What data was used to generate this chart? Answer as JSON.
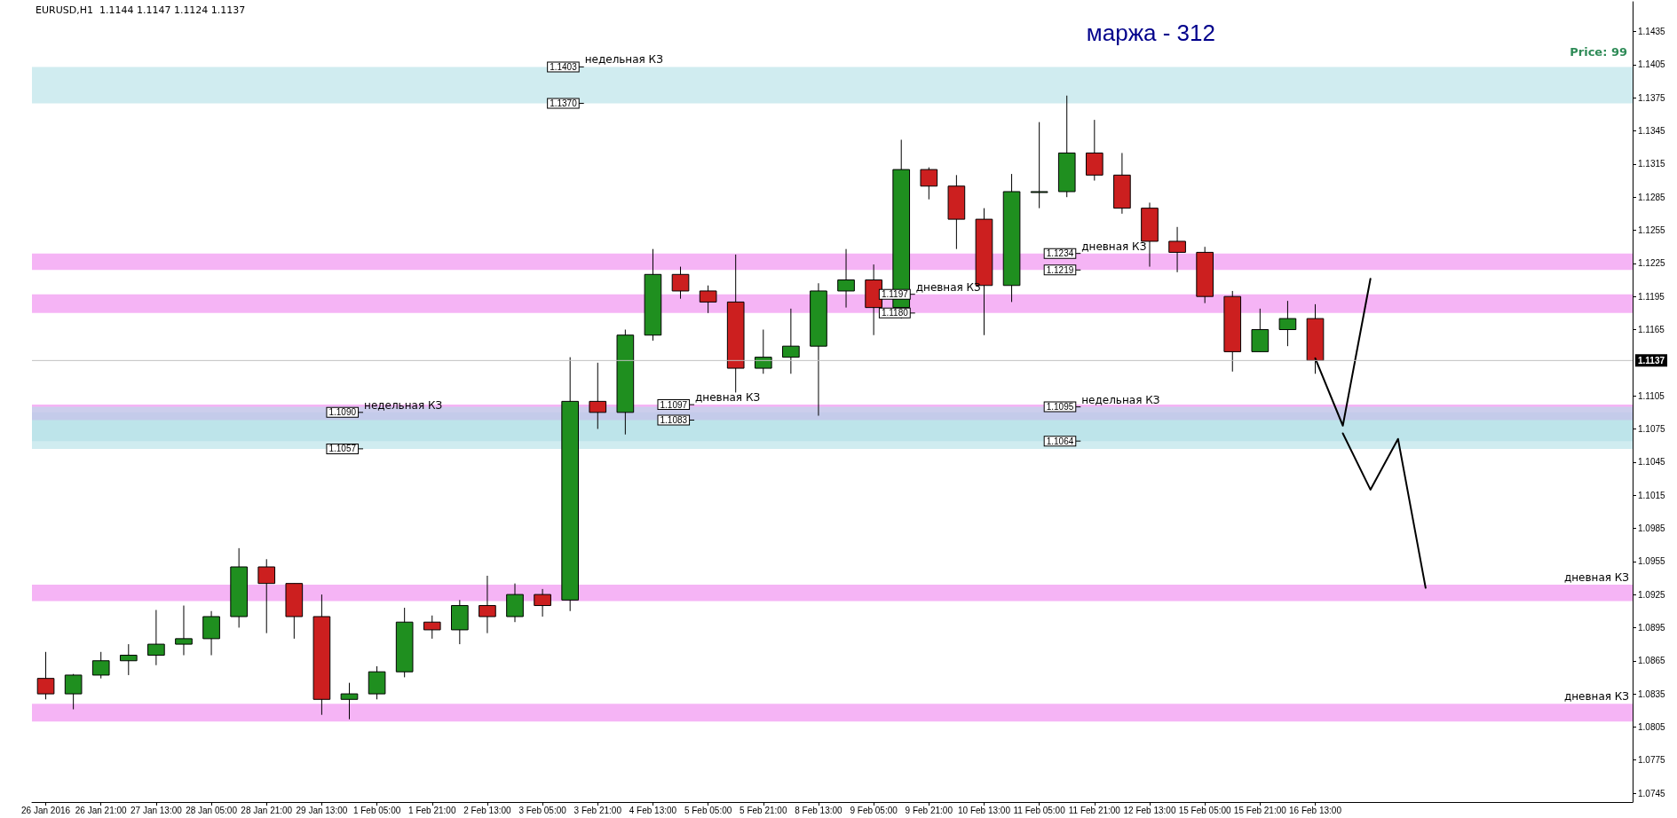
{
  "chart_data": {
    "type": "candlestick",
    "title": "EURUSD,H1  1.1144 1.1147 1.1124 1.1137",
    "categories": [
      "26 Jan 2016",
      null,
      "26 Jan 21:00",
      null,
      "27 Jan 13:00",
      null,
      "28 Jan 05:00",
      null,
      "28 Jan 21:00",
      null,
      "29 Jan 13:00",
      null,
      "1 Feb 05:00",
      null,
      "1 Feb 21:00",
      null,
      "2 Feb 13:00",
      null,
      "3 Feb 05:00",
      null,
      "3 Feb 21:00",
      null,
      "4 Feb 13:00",
      null,
      "5 Feb 05:00",
      null,
      "5 Feb 21:00",
      null,
      "8 Feb 13:00",
      null,
      "9 Feb 05:00",
      null,
      "9 Feb 21:00",
      null,
      "10 Feb 13:00",
      null,
      "11 Feb 05:00",
      null,
      "11 Feb 21:00",
      null,
      "12 Feb 13:00",
      null,
      "15 Feb 05:00",
      null,
      "15 Feb 21:00",
      null,
      "16 Feb 13:00",
      null,
      null,
      null,
      null,
      null,
      null,
      null,
      null,
      null,
      null,
      null
    ],
    "ohlc": [
      [
        1.0849,
        1.0873,
        1.083,
        1.0835
      ],
      [
        1.0835,
        1.0853,
        1.0821,
        1.0852
      ],
      [
        1.0852,
        1.0873,
        1.0849,
        1.0865
      ],
      [
        1.0865,
        1.088,
        1.0852,
        1.087
      ],
      [
        1.087,
        1.0911,
        1.0861,
        1.088
      ],
      [
        1.088,
        1.0915,
        1.087,
        1.0885
      ],
      [
        1.0885,
        1.091,
        1.087,
        1.0905
      ],
      [
        1.0905,
        1.0967,
        1.0895,
        1.095
      ],
      [
        1.095,
        1.0957,
        1.089,
        1.0935
      ],
      [
        1.0935,
        1.0935,
        1.0885,
        1.0905
      ],
      [
        1.0905,
        1.0925,
        1.0816,
        1.083
      ],
      [
        1.083,
        1.0845,
        1.0812,
        1.0835
      ],
      [
        1.0835,
        1.086,
        1.083,
        1.0855
      ],
      [
        1.0855,
        1.0913,
        1.085,
        1.09
      ],
      [
        1.09,
        1.0906,
        1.0885,
        1.0893
      ],
      [
        1.0893,
        1.092,
        1.088,
        1.0915
      ],
      [
        1.0915,
        1.0942,
        1.089,
        1.0905
      ],
      [
        1.0905,
        1.0935,
        1.09,
        1.0925
      ],
      [
        1.0925,
        1.093,
        1.0905,
        1.0915
      ],
      [
        1.092,
        1.114,
        1.091,
        1.11
      ],
      [
        1.11,
        1.1135,
        1.1075,
        1.109
      ],
      [
        1.109,
        1.1165,
        1.107,
        1.116
      ],
      [
        1.116,
        1.1238,
        1.1155,
        1.1215
      ],
      [
        1.1215,
        1.1222,
        1.1193,
        1.12
      ],
      [
        1.12,
        1.1205,
        1.118,
        1.119
      ],
      [
        1.119,
        1.1233,
        1.1108,
        1.113
      ],
      [
        1.113,
        1.1165,
        1.1125,
        1.114
      ],
      [
        1.114,
        1.1184,
        1.1125,
        1.115
      ],
      [
        1.115,
        1.1207,
        1.1087,
        1.12
      ],
      [
        1.12,
        1.1238,
        1.1185,
        1.121
      ],
      [
        1.121,
        1.1224,
        1.116,
        1.1185
      ],
      [
        1.1185,
        1.1337,
        1.1175,
        1.131
      ],
      [
        1.131,
        1.1312,
        1.1283,
        1.1295
      ],
      [
        1.1295,
        1.1305,
        1.1238,
        1.1265
      ],
      [
        1.1265,
        1.1275,
        1.116,
        1.1205
      ],
      [
        1.1205,
        1.1306,
        1.119,
        1.129
      ],
      [
        1.129,
        1.1353,
        1.1275,
        1.129
      ],
      [
        1.129,
        1.1377,
        1.1285,
        1.1325
      ],
      [
        1.1325,
        1.1355,
        1.13,
        1.1305
      ],
      [
        1.1305,
        1.1325,
        1.127,
        1.1275
      ],
      [
        1.1275,
        1.128,
        1.1222,
        1.1245
      ],
      [
        1.1245,
        1.1258,
        1.1217,
        1.1235
      ],
      [
        1.1235,
        1.124,
        1.1189,
        1.1195
      ],
      [
        1.1195,
        1.12,
        1.1127,
        1.1145
      ],
      [
        1.1145,
        1.1184,
        1.1145,
        1.1165
      ],
      [
        1.1165,
        1.1191,
        1.115,
        1.1175
      ],
      [
        1.1175,
        1.1188,
        1.1125,
        1.1137
      ],
      null,
      null,
      null,
      null,
      null,
      null,
      null,
      null,
      null,
      null,
      null
    ],
    "ylim": [
      1.0737,
      1.1462
    ],
    "yticks": [
      1.0745,
      1.0775,
      1.0805,
      1.0835,
      1.0865,
      1.0895,
      1.0925,
      1.0955,
      1.0985,
      1.1015,
      1.1045,
      1.1075,
      1.1105,
      1.1165,
      1.1195,
      1.1225,
      1.1255,
      1.1285,
      1.1315,
      1.1345,
      1.1375,
      1.1405,
      1.1435
    ],
    "grid": false,
    "marker": "none",
    "line_style": "solid",
    "bands": [
      {
        "axis": "y",
        "from": 1.0919,
        "to": 1.0934,
        "label": "дневная КЗ",
        "color": "#ee82ee"
      },
      {
        "axis": "y",
        "from": 1.081,
        "to": 1.0826,
        "label": "дневная КЗ",
        "color": "#ee82ee"
      },
      {
        "axis": "y",
        "from": 1.1057,
        "to": 1.109,
        "label": "недельная КЗ",
        "color": "#b0e0e6"
      },
      {
        "axis": "y",
        "from": 1.137,
        "to": 1.1403,
        "label": "недельная КЗ",
        "color": "#b0e0e6"
      },
      {
        "axis": "y",
        "from": 1.1083,
        "to": 1.1097,
        "label": "дневная КЗ",
        "color": "#ee82ee"
      },
      {
        "axis": "y",
        "from": 1.118,
        "to": 1.1197,
        "label": "дневная КЗ",
        "color": "#ee82ee"
      },
      {
        "axis": "y",
        "from": 1.1219,
        "to": 1.1234,
        "label": "дневная КЗ",
        "color": "#ee82ee"
      },
      {
        "axis": "y",
        "from": 1.1064,
        "to": 1.1095,
        "label": "недельная КЗ",
        "color": "#b0e0e6"
      }
    ],
    "series": [
      {
        "type": "line",
        "color": "#000000",
        "values": [
          null,
          null,
          null,
          null,
          null,
          null,
          null,
          null,
          null,
          null,
          null,
          null,
          null,
          null,
          null,
          null,
          null,
          null,
          null,
          null,
          null,
          null,
          null,
          null,
          null,
          null,
          null,
          null,
          null,
          null,
          null,
          null,
          null,
          null,
          null,
          null,
          null,
          null,
          null,
          null,
          null,
          null,
          null,
          null,
          null,
          null,
          1.1139,
          1.1078,
          1.1211,
          null,
          null,
          null,
          null,
          null,
          null,
          null,
          null,
          null
        ]
      },
      {
        "type": "line",
        "color": "#000000",
        "values": [
          null,
          null,
          null,
          null,
          null,
          null,
          null,
          null,
          null,
          null,
          null,
          null,
          null,
          null,
          null,
          null,
          null,
          null,
          null,
          null,
          null,
          null,
          null,
          null,
          null,
          null,
          null,
          null,
          null,
          null,
          null,
          null,
          null,
          null,
          null,
          null,
          null,
          null,
          null,
          null,
          null,
          null,
          null,
          null,
          null,
          null,
          null,
          1.1071,
          1.102,
          1.1066,
          1.0931,
          null,
          null,
          null,
          null,
          null,
          null,
          null
        ]
      }
    ],
    "ref_lines": [
      {
        "axis": "y",
        "value": 1.1137,
        "label": "1.1137",
        "color": "#c0c0c0"
      }
    ],
    "annotations": [
      "маржа - 312",
      "Price: 99",
      {
        "text": "1.1090",
        "x": "1 Feb 05:00",
        "y": 1.109
      },
      {
        "text": "1.1057",
        "x": "1 Feb 05:00",
        "y": 1.1057
      },
      {
        "text": "1.1403",
        "x": "3 Feb 21:00",
        "y": 1.1403
      },
      {
        "text": "1.1370",
        "x": "3 Feb 21:00",
        "y": 1.137
      },
      {
        "text": "1.1097",
        "x": "5 Feb 05:00",
        "y": 1.1097
      },
      {
        "text": "1.1083",
        "x": "5 Feb 05:00",
        "y": 1.1083
      },
      {
        "text": "1.1197",
        "x": "9 Feb 21:00",
        "y": 1.1197
      },
      {
        "text": "1.1180",
        "x": "9 Feb 21:00",
        "y": 1.118
      },
      {
        "text": "1.1234",
        "x": "11 Feb 21:00",
        "y": 1.1234
      },
      {
        "text": "1.1219",
        "x": "11 Feb 21:00",
        "y": 1.1219
      },
      {
        "text": "1.1095",
        "x": "11 Feb 21:00",
        "y": 1.1095
      },
      {
        "text": "1.1064",
        "x": "11 Feb 21:00",
        "y": 1.1064
      }
    ]
  }
}
